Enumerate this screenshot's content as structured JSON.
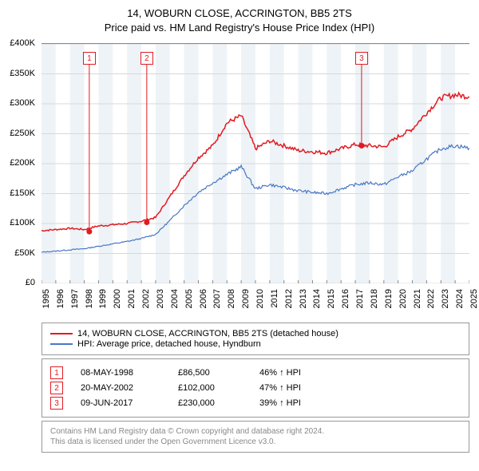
{
  "title": {
    "line1": "14, WOBURN CLOSE, ACCRINGTON, BB5 2TS",
    "line2": "Price paid vs. HM Land Registry's House Price Index (HPI)"
  },
  "chart": {
    "type": "line",
    "background_bands_even": "#eef3f7",
    "background_bands_odd": "#ffffff",
    "grid_color": "#d8d8d8",
    "border_color": "#888888",
    "ylim": [
      0,
      400000
    ],
    "ytick_step": 50000,
    "y_ticks": [
      "£0",
      "£50K",
      "£100K",
      "£150K",
      "£200K",
      "£250K",
      "£300K",
      "£350K",
      "£400K"
    ],
    "x_years": [
      1995,
      1996,
      1997,
      1998,
      1999,
      2000,
      2001,
      2002,
      2003,
      2004,
      2005,
      2006,
      2007,
      2008,
      2009,
      2010,
      2011,
      2012,
      2013,
      2014,
      2015,
      2016,
      2017,
      2018,
      2019,
      2020,
      2021,
      2022,
      2023,
      2024,
      2025
    ],
    "series": [
      {
        "name": "14, WOBURN CLOSE, ACCRINGTON, BB5 2TS (detached house)",
        "color": "#e11b22",
        "line_width": 1.5,
        "values": [
          88,
          90,
          92,
          90,
          96,
          98,
          100,
          104,
          110,
          145,
          180,
          210,
          230,
          268,
          280,
          225,
          238,
          230,
          222,
          220,
          218,
          225,
          232,
          230,
          228,
          245,
          258,
          285,
          310,
          315,
          312
        ]
      },
      {
        "name": "HPI: Average price, detached house, Hyndburn",
        "color": "#4a78c4",
        "line_width": 1.2,
        "values": [
          52,
          54,
          56,
          58,
          62,
          66,
          70,
          75,
          82,
          105,
          130,
          152,
          168,
          182,
          195,
          158,
          165,
          160,
          155,
          152,
          150,
          158,
          165,
          168,
          165,
          178,
          188,
          208,
          225,
          230,
          226
        ]
      }
    ],
    "transactions": [
      {
        "n": "1",
        "date": "08-MAY-1998",
        "price": "£86,500",
        "pct": "46% ↑ HPI",
        "year": 1998.35,
        "value": 86500
      },
      {
        "n": "2",
        "date": "20-MAY-2002",
        "price": "£102,000",
        "pct": "47% ↑ HPI",
        "year": 2002.38,
        "value": 102000
      },
      {
        "n": "3",
        "date": "09-JUN-2017",
        "price": "£230,000",
        "pct": "39% ↑ HPI",
        "year": 2017.44,
        "value": 230000
      }
    ],
    "marker_color": "#e11b22",
    "callout_color": "#e11b22",
    "font_size_axis": 11,
    "font_size_title": 13
  },
  "legend": {
    "items": [
      {
        "color": "#e11b22",
        "label": "14, WOBURN CLOSE, ACCRINGTON, BB5 2TS (detached house)"
      },
      {
        "color": "#4a78c4",
        "label": "HPI: Average price, detached house, Hyndburn"
      }
    ]
  },
  "attribution": {
    "line1": "Contains HM Land Registry data © Crown copyright and database right 2024.",
    "line2": "This data is licensed under the Open Government Licence v3.0."
  }
}
